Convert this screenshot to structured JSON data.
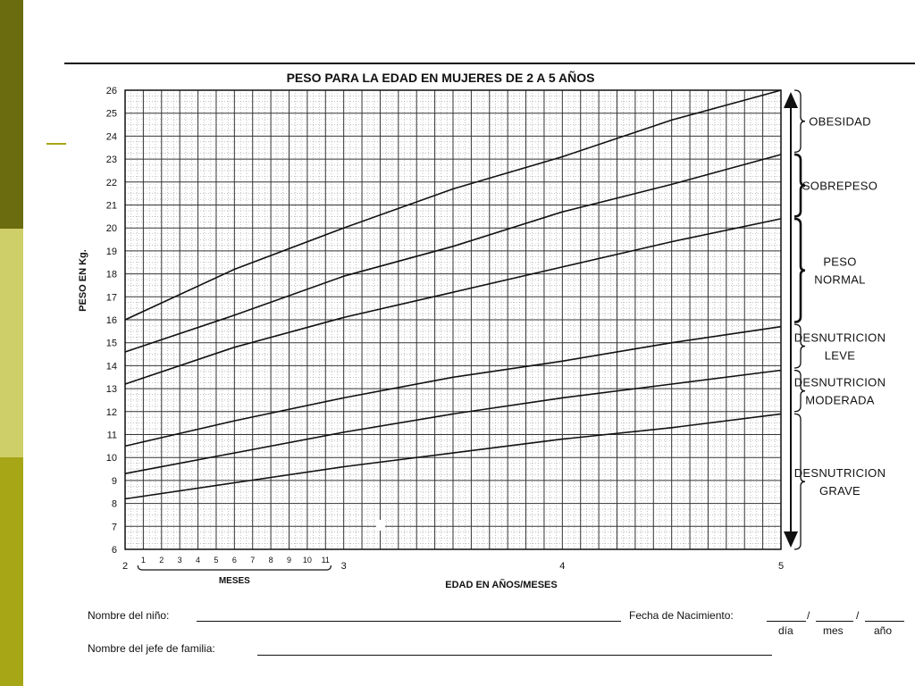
{
  "chart_data": {
    "type": "line",
    "title": "PESO PARA LA EDAD EN MUJERES DE 2 A 5 AÑOS",
    "xlabel": "EDAD EN AÑOS/MESES",
    "ylabel": "PESO EN Kg.",
    "xlim": [
      2,
      5
    ],
    "ylim": [
      6,
      26
    ],
    "grid": true,
    "x_major_ticks": [
      "2",
      "3",
      "4",
      "5"
    ],
    "x_month_ticks": [
      "1",
      "2",
      "3",
      "4",
      "5",
      "6",
      "7",
      "8",
      "9",
      "10",
      "11"
    ],
    "x_month_group_label": "MESES",
    "y_ticks": [
      "6",
      "7",
      "8",
      "9",
      "10",
      "11",
      "12",
      "13",
      "14",
      "15",
      "16",
      "17",
      "18",
      "19",
      "20",
      "21",
      "22",
      "23",
      "24",
      "25",
      "26"
    ],
    "x": [
      2,
      2.5,
      3,
      3.5,
      4,
      4.5,
      5
    ],
    "series": [
      {
        "values": [
          8.2,
          8.9,
          9.6,
          10.2,
          10.8,
          11.3,
          11.9
        ]
      },
      {
        "values": [
          9.3,
          10.2,
          11.1,
          11.9,
          12.6,
          13.2,
          13.8
        ]
      },
      {
        "values": [
          10.5,
          11.6,
          12.6,
          13.5,
          14.2,
          15.0,
          15.7
        ]
      },
      {
        "values": [
          13.2,
          14.8,
          16.1,
          17.2,
          18.3,
          19.4,
          20.4
        ]
      },
      {
        "values": [
          14.6,
          16.2,
          17.9,
          19.2,
          20.7,
          21.9,
          23.2
        ]
      },
      {
        "values": [
          16.0,
          18.2,
          20.0,
          21.7,
          23.1,
          24.7,
          26.0
        ]
      }
    ],
    "bands": [
      {
        "label": [
          "OBESIDAD"
        ],
        "range": [
          23.3,
          26.0
        ]
      },
      {
        "label": [
          "SOBREPESO"
        ],
        "range": [
          20.5,
          23.2
        ]
      },
      {
        "label": [
          "PESO",
          "NORMAL"
        ],
        "range": [
          15.9,
          20.4
        ]
      },
      {
        "label": [
          "DESNUTRICION",
          "LEVE"
        ],
        "range": [
          13.9,
          15.8
        ]
      },
      {
        "label": [
          "DESNUTRICION",
          "MODERADA"
        ],
        "range": [
          12.0,
          13.8
        ]
      },
      {
        "label": [
          "DESNUTRICION",
          "GRAVE"
        ],
        "range": [
          6.0,
          11.9
        ]
      }
    ]
  },
  "form": {
    "child_name_label": "Nombre del niño:",
    "birth_date_label": "Fecha de Nacimiento:",
    "slash_1": "/",
    "slash_2": "/",
    "day_label": "día",
    "month_label": "mes",
    "year_label": "año",
    "head_name_label": "Nombre del jefe de familia:"
  }
}
